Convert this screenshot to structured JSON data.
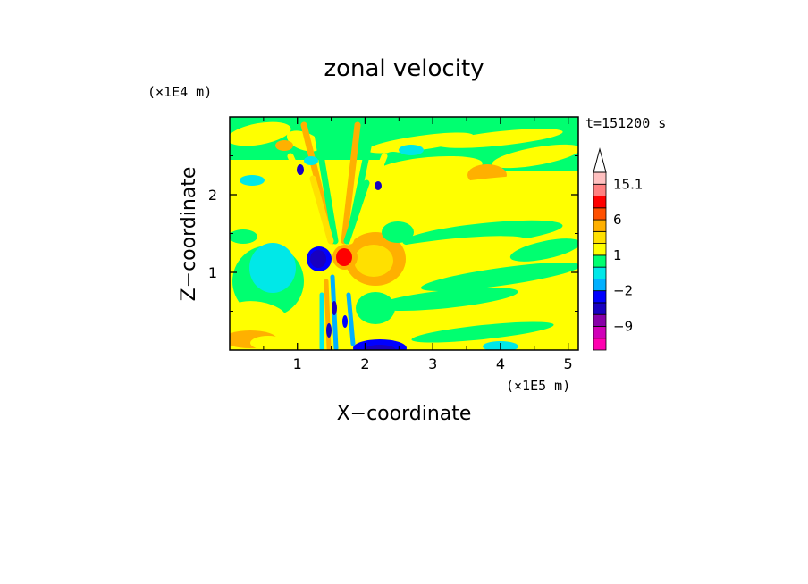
{
  "chart_data": {
    "type": "heatmap",
    "title": "zonal velocity",
    "xlabel": "X−coordinate",
    "ylabel": "Z−coordinate",
    "x_scale_label": "(×1E5 m)",
    "y_scale_label": "(×1E4 m)",
    "time_label": "t=151200 s",
    "xlim": [
      0,
      5.15
    ],
    "ylim": [
      0,
      3.0
    ],
    "x_ticks": [
      1,
      2,
      3,
      4,
      5
    ],
    "y_ticks": [
      1,
      2
    ],
    "x_tick_labels": [
      "1",
      "2",
      "3",
      "4",
      "5"
    ],
    "y_tick_labels": [
      "1",
      "2"
    ],
    "colorbar": {
      "levels": [
        -15,
        -12,
        -9,
        -6,
        -3,
        -2,
        -1,
        0,
        1,
        2,
        3,
        6,
        9,
        12,
        15.1
      ],
      "colors": [
        "#ff00b0",
        "#d000b8",
        "#8800a8",
        "#1800c0",
        "#0000ff",
        "#00b0ff",
        "#00e8e8",
        "#00ff70",
        "#ffff00",
        "#ffe000",
        "#ffb000",
        "#ff5000",
        "#ff0000",
        "#ff8080",
        "#ffc0c0"
      ],
      "over_color": "#ffffff",
      "labels": [
        "15.1",
        "6",
        "1",
        "−2",
        "−9"
      ]
    },
    "field_description": "zonal velocity contours: background mostly green/yellow bands, strong negative (blue) and positive (red) cores near x=1.4–1.6, z=1.2"
  }
}
